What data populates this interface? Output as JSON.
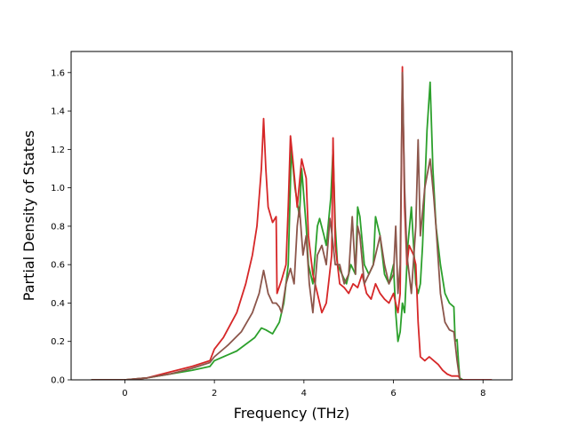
{
  "chart_data": {
    "type": "line",
    "title": "",
    "xlabel": "Frequency (THz)",
    "ylabel": "Partial Density of States",
    "xlim": [
      -1.2,
      8.65
    ],
    "ylim": [
      0.0,
      1.71
    ],
    "xticks": [
      0,
      2,
      4,
      6,
      8
    ],
    "xtick_labels": [
      "0",
      "2",
      "4",
      "6",
      "8"
    ],
    "yticks": [
      0.0,
      0.2,
      0.4,
      0.6,
      0.8,
      1.0,
      1.2,
      1.4,
      1.6
    ],
    "ytick_labels": [
      "0.0",
      "0.2",
      "0.4",
      "0.6",
      "0.8",
      "1.0",
      "1.2",
      "1.4",
      "1.6"
    ],
    "grid": false,
    "legend": "none",
    "series": [
      {
        "color": "#2ca02c",
        "points": [
          [
            -0.75,
            0
          ],
          [
            0,
            0
          ],
          [
            0.5,
            0.01
          ],
          [
            1,
            0.03
          ],
          [
            1.5,
            0.05
          ],
          [
            1.9,
            0.07
          ],
          [
            2,
            0.1
          ],
          [
            2.5,
            0.15
          ],
          [
            2.9,
            0.22
          ],
          [
            3.05,
            0.27
          ],
          [
            3.15,
            0.26
          ],
          [
            3.3,
            0.24
          ],
          [
            3.45,
            0.3
          ],
          [
            3.55,
            0.4
          ],
          [
            3.65,
            0.6
          ],
          [
            3.72,
            1.2
          ],
          [
            3.8,
            1.0
          ],
          [
            3.9,
            0.85
          ],
          [
            3.95,
            1.1
          ],
          [
            4.05,
            0.8
          ],
          [
            4.1,
            0.6
          ],
          [
            4.2,
            0.5
          ],
          [
            4.3,
            0.8
          ],
          [
            4.35,
            0.84
          ],
          [
            4.45,
            0.75
          ],
          [
            4.5,
            0.7
          ],
          [
            4.6,
            0.95
          ],
          [
            4.65,
            1.2
          ],
          [
            4.7,
            0.8
          ],
          [
            4.75,
            0.6
          ],
          [
            4.85,
            0.55
          ],
          [
            4.95,
            0.5
          ],
          [
            5.05,
            0.6
          ],
          [
            5.15,
            0.55
          ],
          [
            5.2,
            0.9
          ],
          [
            5.25,
            0.85
          ],
          [
            5.35,
            0.6
          ],
          [
            5.45,
            0.55
          ],
          [
            5.55,
            0.6
          ],
          [
            5.6,
            0.85
          ],
          [
            5.7,
            0.75
          ],
          [
            5.8,
            0.55
          ],
          [
            5.9,
            0.5
          ],
          [
            6.0,
            0.6
          ],
          [
            6.05,
            0.35
          ],
          [
            6.1,
            0.2
          ],
          [
            6.15,
            0.25
          ],
          [
            6.2,
            0.4
          ],
          [
            6.25,
            0.35
          ],
          [
            6.32,
            0.7
          ],
          [
            6.4,
            0.9
          ],
          [
            6.5,
            0.5
          ],
          [
            6.55,
            0.45
          ],
          [
            6.6,
            0.5
          ],
          [
            6.65,
            0.7
          ],
          [
            6.75,
            1.3
          ],
          [
            6.82,
            1.55
          ],
          [
            6.88,
            1.1
          ],
          [
            6.95,
            0.8
          ],
          [
            7.05,
            0.6
          ],
          [
            7.15,
            0.45
          ],
          [
            7.25,
            0.4
          ],
          [
            7.35,
            0.38
          ],
          [
            7.38,
            0.2
          ],
          [
            7.42,
            0.21
          ],
          [
            7.45,
            0.1
          ],
          [
            7.48,
            0.01
          ],
          [
            7.55,
            0
          ]
        ]
      },
      {
        "color": "#d62728",
        "points": [
          [
            -0.75,
            0
          ],
          [
            0,
            0
          ],
          [
            0.5,
            0.01
          ],
          [
            1,
            0.04
          ],
          [
            1.5,
            0.07
          ],
          [
            1.9,
            0.1
          ],
          [
            2,
            0.16
          ],
          [
            2.2,
            0.22
          ],
          [
            2.5,
            0.35
          ],
          [
            2.7,
            0.5
          ],
          [
            2.85,
            0.65
          ],
          [
            2.95,
            0.8
          ],
          [
            3.05,
            1.1
          ],
          [
            3.1,
            1.36
          ],
          [
            3.15,
            1.1
          ],
          [
            3.2,
            0.9
          ],
          [
            3.3,
            0.82
          ],
          [
            3.38,
            0.85
          ],
          [
            3.4,
            0.45
          ],
          [
            3.5,
            0.52
          ],
          [
            3.6,
            0.6
          ],
          [
            3.65,
            0.9
          ],
          [
            3.7,
            1.27
          ],
          [
            3.75,
            1.15
          ],
          [
            3.85,
            0.9
          ],
          [
            3.95,
            1.15
          ],
          [
            4.05,
            1.05
          ],
          [
            4.1,
            0.75
          ],
          [
            4.2,
            0.55
          ],
          [
            4.3,
            0.45
          ],
          [
            4.4,
            0.35
          ],
          [
            4.5,
            0.4
          ],
          [
            4.55,
            0.5
          ],
          [
            4.62,
            0.65
          ],
          [
            4.65,
            1.26
          ],
          [
            4.7,
            0.7
          ],
          [
            4.8,
            0.5
          ],
          [
            4.9,
            0.48
          ],
          [
            5.0,
            0.45
          ],
          [
            5.1,
            0.5
          ],
          [
            5.2,
            0.48
          ],
          [
            5.3,
            0.55
          ],
          [
            5.4,
            0.45
          ],
          [
            5.5,
            0.42
          ],
          [
            5.6,
            0.5
          ],
          [
            5.7,
            0.45
          ],
          [
            5.8,
            0.42
          ],
          [
            5.9,
            0.4
          ],
          [
            6.0,
            0.45
          ],
          [
            6.1,
            0.35
          ],
          [
            6.15,
            0.45
          ],
          [
            6.2,
            1.63
          ],
          [
            6.25,
            0.9
          ],
          [
            6.3,
            0.6
          ],
          [
            6.35,
            0.7
          ],
          [
            6.45,
            0.65
          ],
          [
            6.5,
            0.6
          ],
          [
            6.55,
            0.3
          ],
          [
            6.6,
            0.12
          ],
          [
            6.7,
            0.1
          ],
          [
            6.8,
            0.12
          ],
          [
            6.9,
            0.1
          ],
          [
            7.0,
            0.08
          ],
          [
            7.1,
            0.05
          ],
          [
            7.2,
            0.03
          ],
          [
            7.3,
            0.02
          ],
          [
            7.45,
            0.02
          ],
          [
            7.5,
            0
          ],
          [
            7.7,
            0
          ],
          [
            8.2,
            0
          ]
        ]
      },
      {
        "color": "#8c564b",
        "points": [
          [
            -0.75,
            0
          ],
          [
            0,
            0
          ],
          [
            0.5,
            0.01
          ],
          [
            1,
            0.03
          ],
          [
            1.5,
            0.06
          ],
          [
            1.9,
            0.09
          ],
          [
            2,
            0.12
          ],
          [
            2.3,
            0.18
          ],
          [
            2.6,
            0.25
          ],
          [
            2.85,
            0.35
          ],
          [
            3.0,
            0.45
          ],
          [
            3.1,
            0.57
          ],
          [
            3.2,
            0.45
          ],
          [
            3.3,
            0.4
          ],
          [
            3.38,
            0.4
          ],
          [
            3.45,
            0.38
          ],
          [
            3.5,
            0.35
          ],
          [
            3.6,
            0.5
          ],
          [
            3.7,
            0.58
          ],
          [
            3.78,
            0.5
          ],
          [
            3.85,
            0.8
          ],
          [
            3.9,
            0.9
          ],
          [
            3.98,
            0.65
          ],
          [
            4.05,
            0.75
          ],
          [
            4.12,
            0.5
          ],
          [
            4.2,
            0.35
          ],
          [
            4.3,
            0.65
          ],
          [
            4.4,
            0.7
          ],
          [
            4.5,
            0.6
          ],
          [
            4.58,
            0.84
          ],
          [
            4.63,
            0.75
          ],
          [
            4.7,
            0.6
          ],
          [
            4.8,
            0.6
          ],
          [
            4.9,
            0.5
          ],
          [
            5.0,
            0.55
          ],
          [
            5.08,
            0.85
          ],
          [
            5.15,
            0.55
          ],
          [
            5.2,
            0.8
          ],
          [
            5.25,
            0.75
          ],
          [
            5.35,
            0.5
          ],
          [
            5.45,
            0.55
          ],
          [
            5.55,
            0.6
          ],
          [
            5.6,
            0.65
          ],
          [
            5.7,
            0.75
          ],
          [
            5.8,
            0.6
          ],
          [
            5.9,
            0.5
          ],
          [
            6.0,
            0.55
          ],
          [
            6.05,
            0.8
          ],
          [
            6.1,
            0.45
          ],
          [
            6.15,
            0.6
          ],
          [
            6.2,
            1.6
          ],
          [
            6.25,
            1.0
          ],
          [
            6.3,
            0.65
          ],
          [
            6.4,
            0.45
          ],
          [
            6.5,
            0.8
          ],
          [
            6.55,
            1.25
          ],
          [
            6.6,
            0.75
          ],
          [
            6.7,
            1.0
          ],
          [
            6.82,
            1.15
          ],
          [
            6.9,
            0.95
          ],
          [
            6.95,
            0.8
          ],
          [
            7.05,
            0.45
          ],
          [
            7.15,
            0.3
          ],
          [
            7.25,
            0.26
          ],
          [
            7.35,
            0.25
          ],
          [
            7.42,
            0.1
          ],
          [
            7.47,
            0.02
          ],
          [
            7.5,
            0
          ]
        ]
      }
    ]
  }
}
